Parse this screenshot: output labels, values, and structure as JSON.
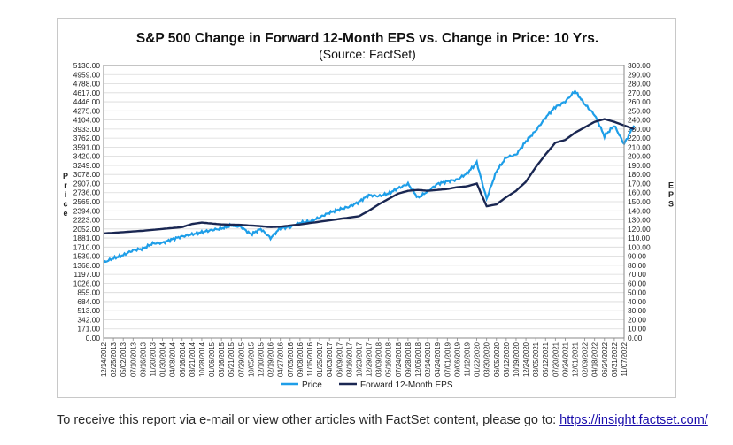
{
  "chart_data": {
    "type": "line",
    "title": "S&P 500 Change in Forward 12-Month EPS vs. Change in Price: 10 Yrs.",
    "subtitle": "(Source: FactSet)",
    "left_axis_label": "Price",
    "right_axis_label": "EPS",
    "left_ylim": [
      0,
      5130
    ],
    "right_ylim": [
      0,
      300
    ],
    "left_ticks": [
      "5130.00",
      "4959.00",
      "4788.00",
      "4617.00",
      "4446.00",
      "4275.00",
      "4104.00",
      "3933.00",
      "3762.00",
      "3591.00",
      "3420.00",
      "3249.00",
      "3078.00",
      "2907.00",
      "2736.00",
      "2565.00",
      "2394.00",
      "2223.00",
      "2052.00",
      "1881.00",
      "1710.00",
      "1539.00",
      "1368.00",
      "1197.00",
      "1026.00",
      "855.00",
      "684.00",
      "513.00",
      "342.00",
      "171.00",
      "0.00"
    ],
    "right_ticks": [
      "300.00",
      "290.00",
      "280.00",
      "270.00",
      "260.00",
      "250.00",
      "240.00",
      "230.00",
      "220.00",
      "210.00",
      "200.00",
      "190.00",
      "180.00",
      "170.00",
      "160.00",
      "150.00",
      "140.00",
      "130.00",
      "120.00",
      "110.00",
      "100.00",
      "90.00",
      "80.00",
      "70.00",
      "60.00",
      "50.00",
      "40.00",
      "30.00",
      "20.00",
      "10.00",
      "0.00"
    ],
    "x_ticks": [
      "12/14/2012",
      "02/25/2013",
      "05/02/2013",
      "07/10/2013",
      "09/16/2013",
      "11/20/2013",
      "01/30/2014",
      "04/08/2014",
      "06/16/2014",
      "08/21/2014",
      "10/28/2014",
      "01/06/2015",
      "03/16/2015",
      "05/21/2015",
      "07/29/2015",
      "10/05/2015",
      "12/10/2015",
      "02/19/2016",
      "04/27/2016",
      "07/05/2016",
      "09/08/2016",
      "11/15/2016",
      "01/25/2017",
      "04/03/2017",
      "06/09/2017",
      "08/16/2017",
      "10/23/2017",
      "12/29/2017",
      "03/09/2018",
      "05/16/2018",
      "07/24/2018",
      "09/28/2018",
      "12/06/2018",
      "02/14/2019",
      "04/24/2019",
      "07/01/2019",
      "09/06/2019",
      "11/12/2019",
      "01/22/2020",
      "03/30/2020",
      "06/05/2020",
      "08/12/2020",
      "10/19/2020",
      "12/24/2020",
      "03/05/2021",
      "05/12/2021",
      "07/20/2021",
      "09/24/2021",
      "12/01/2021",
      "02/09/2022",
      "04/18/2022",
      "06/24/2022",
      "08/31/2022",
      "11/07/2022"
    ],
    "series": [
      {
        "name": "Price",
        "axis": "left",
        "color": "#1e9ee8",
        "points": [
          [
            0,
            1420
          ],
          [
            1,
            1500
          ],
          [
            2,
            1560
          ],
          [
            3,
            1650
          ],
          [
            4,
            1680
          ],
          [
            5,
            1780
          ],
          [
            6,
            1790
          ],
          [
            7,
            1860
          ],
          [
            8,
            1910
          ],
          [
            9,
            1950
          ],
          [
            10,
            1990
          ],
          [
            11,
            2030
          ],
          [
            12,
            2060
          ],
          [
            13,
            2120
          ],
          [
            14,
            2090
          ],
          [
            15,
            1950
          ],
          [
            16,
            2050
          ],
          [
            17,
            1880
          ],
          [
            18,
            2070
          ],
          [
            19,
            2090
          ],
          [
            20,
            2170
          ],
          [
            21,
            2190
          ],
          [
            22,
            2270
          ],
          [
            23,
            2360
          ],
          [
            24,
            2420
          ],
          [
            25,
            2470
          ],
          [
            26,
            2560
          ],
          [
            27,
            2690
          ],
          [
            28,
            2670
          ],
          [
            29,
            2720
          ],
          [
            30,
            2820
          ],
          [
            31,
            2900
          ],
          [
            32,
            2640
          ],
          [
            33,
            2760
          ],
          [
            34,
            2900
          ],
          [
            35,
            2950
          ],
          [
            36,
            2980
          ],
          [
            37,
            3100
          ],
          [
            38,
            3300
          ],
          [
            39,
            2620
          ],
          [
            40,
            3140
          ],
          [
            41,
            3400
          ],
          [
            42,
            3450
          ],
          [
            43,
            3700
          ],
          [
            44,
            3900
          ],
          [
            45,
            4150
          ],
          [
            46,
            4350
          ],
          [
            47,
            4450
          ],
          [
            48,
            4650
          ],
          [
            49,
            4400
          ],
          [
            50,
            4200
          ],
          [
            51,
            3800
          ],
          [
            52,
            4000
          ],
          [
            53,
            3650
          ],
          [
            54,
            4000
          ]
        ]
      },
      {
        "name": "Forward 12-Month EPS",
        "axis": "right",
        "color": "#1a2752",
        "points": [
          [
            0,
            115
          ],
          [
            2,
            116.5
          ],
          [
            4,
            118
          ],
          [
            6,
            120
          ],
          [
            8,
            122
          ],
          [
            9,
            125.5
          ],
          [
            10,
            127
          ],
          [
            11,
            126
          ],
          [
            12,
            125
          ],
          [
            14,
            124.5
          ],
          [
            16,
            123
          ],
          [
            17,
            122
          ],
          [
            18,
            122.5
          ],
          [
            20,
            125
          ],
          [
            22,
            128
          ],
          [
            24,
            131
          ],
          [
            26,
            134
          ],
          [
            27,
            140
          ],
          [
            28,
            147
          ],
          [
            29,
            153
          ],
          [
            30,
            159
          ],
          [
            31,
            162
          ],
          [
            32,
            163
          ],
          [
            33,
            162
          ],
          [
            34,
            163
          ],
          [
            35,
            164
          ],
          [
            36,
            166
          ],
          [
            37,
            167
          ],
          [
            38,
            170
          ],
          [
            39,
            145
          ],
          [
            40,
            147
          ],
          [
            41,
            155
          ],
          [
            42,
            162
          ],
          [
            43,
            172
          ],
          [
            44,
            188
          ],
          [
            45,
            202
          ],
          [
            46,
            215
          ],
          [
            47,
            218
          ],
          [
            48,
            226
          ],
          [
            49,
            232
          ],
          [
            50,
            238
          ],
          [
            51,
            241
          ],
          [
            52,
            238
          ],
          [
            53,
            234
          ],
          [
            54,
            230
          ]
        ]
      }
    ]
  },
  "legend": {
    "price_label": "Price",
    "eps_label": "Forward 12-Month EPS"
  },
  "footer": {
    "text": "To receive this report via e-mail or view other articles with FactSet content, please go to:",
    "link": "https://insight.factset.com/"
  }
}
